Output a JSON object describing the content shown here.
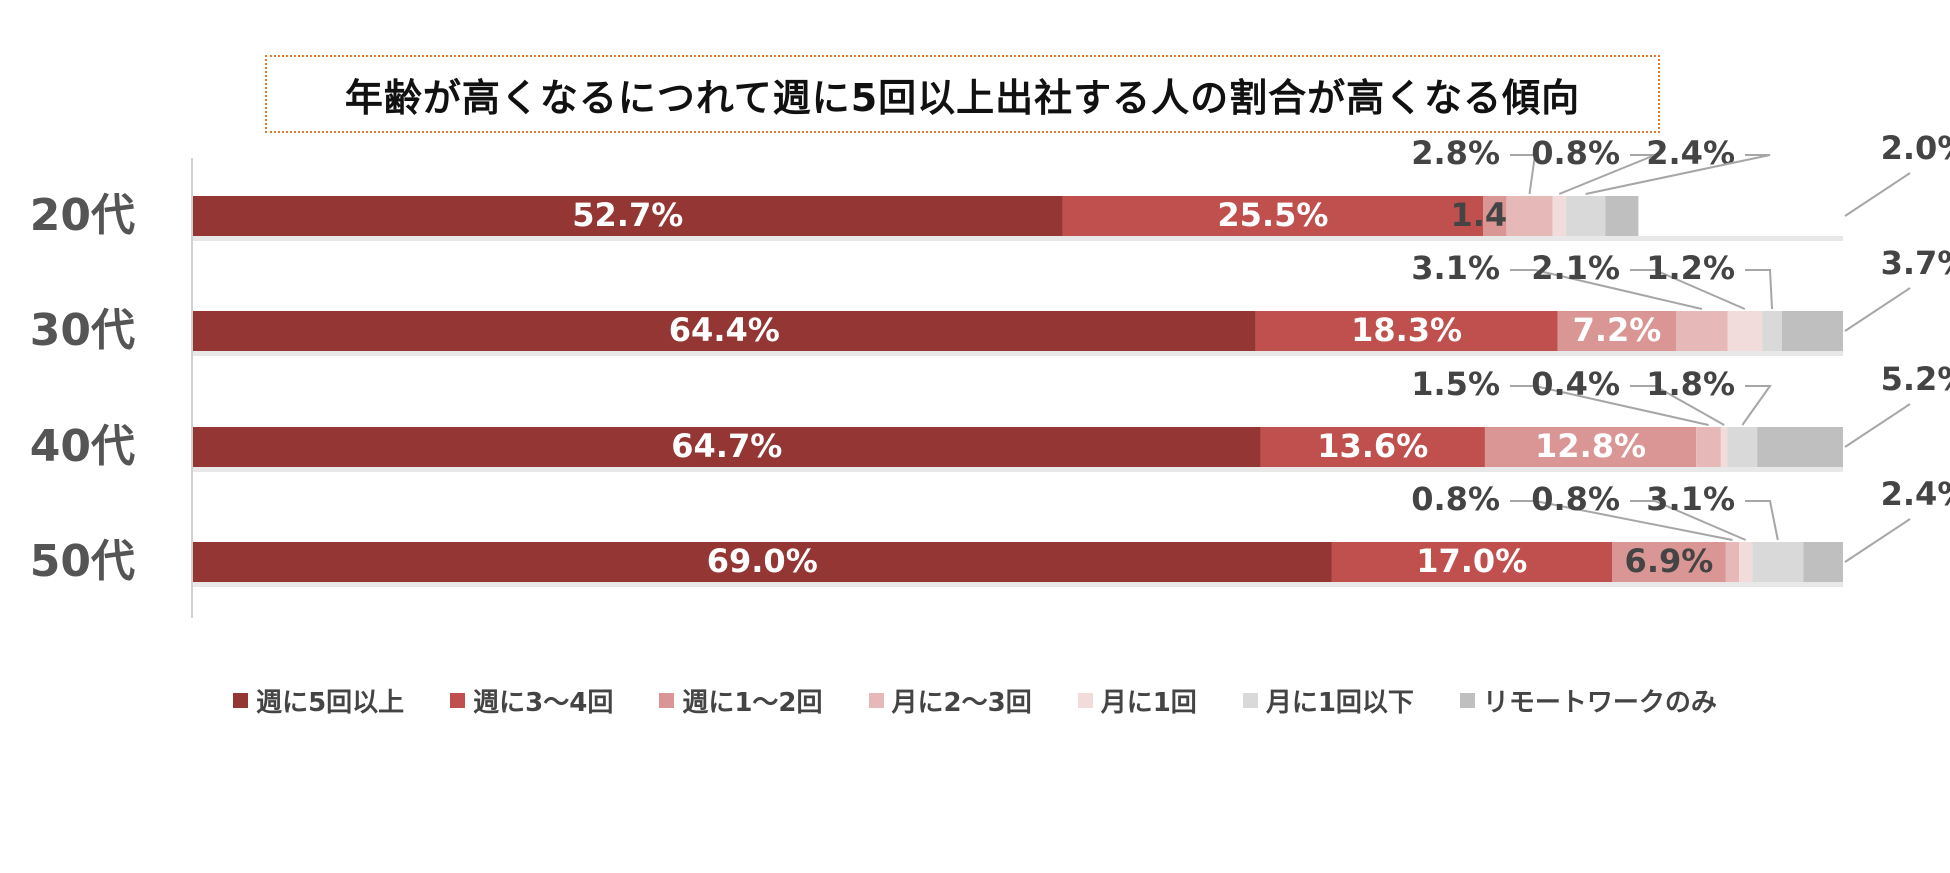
{
  "title": "年齢が高くなるにつれて週に5回以上出社する人の割合が高くなる傾向",
  "chart_data": {
    "type": "bar",
    "orientation": "horizontal",
    "stacked": true,
    "percent_stacked": true,
    "categories": [
      "20代",
      "30代",
      "40代",
      "50代"
    ],
    "series": [
      {
        "name": "週に5回以上",
        "color": "#943634",
        "values": [
          52.7,
          64.4,
          64.7,
          69.0
        ]
      },
      {
        "name": "週に3〜4回",
        "color": "#c0504d",
        "values": [
          25.5,
          18.3,
          13.6,
          17.0
        ]
      },
      {
        "name": "週に1〜2回",
        "color": "#d99694",
        "values": [
          1.4,
          7.2,
          12.8,
          6.9
        ]
      },
      {
        "name": "月に2〜3回",
        "color": "#e6b9b8",
        "values": [
          2.8,
          3.1,
          1.5,
          0.8
        ]
      },
      {
        "name": "月に1回",
        "color": "#f2dcdb",
        "values": [
          0.8,
          2.1,
          0.4,
          0.8
        ]
      },
      {
        "name": "月に1回以下",
        "color": "#d9d9d9",
        "values": [
          2.4,
          1.2,
          1.8,
          3.1
        ]
      },
      {
        "name": "リモートワークのみ",
        "color": "#bfbfbf",
        "values": [
          2.0,
          3.7,
          5.2,
          2.4
        ]
      }
    ],
    "xlim": [
      0,
      100
    ],
    "legend_position": "bottom"
  }
}
